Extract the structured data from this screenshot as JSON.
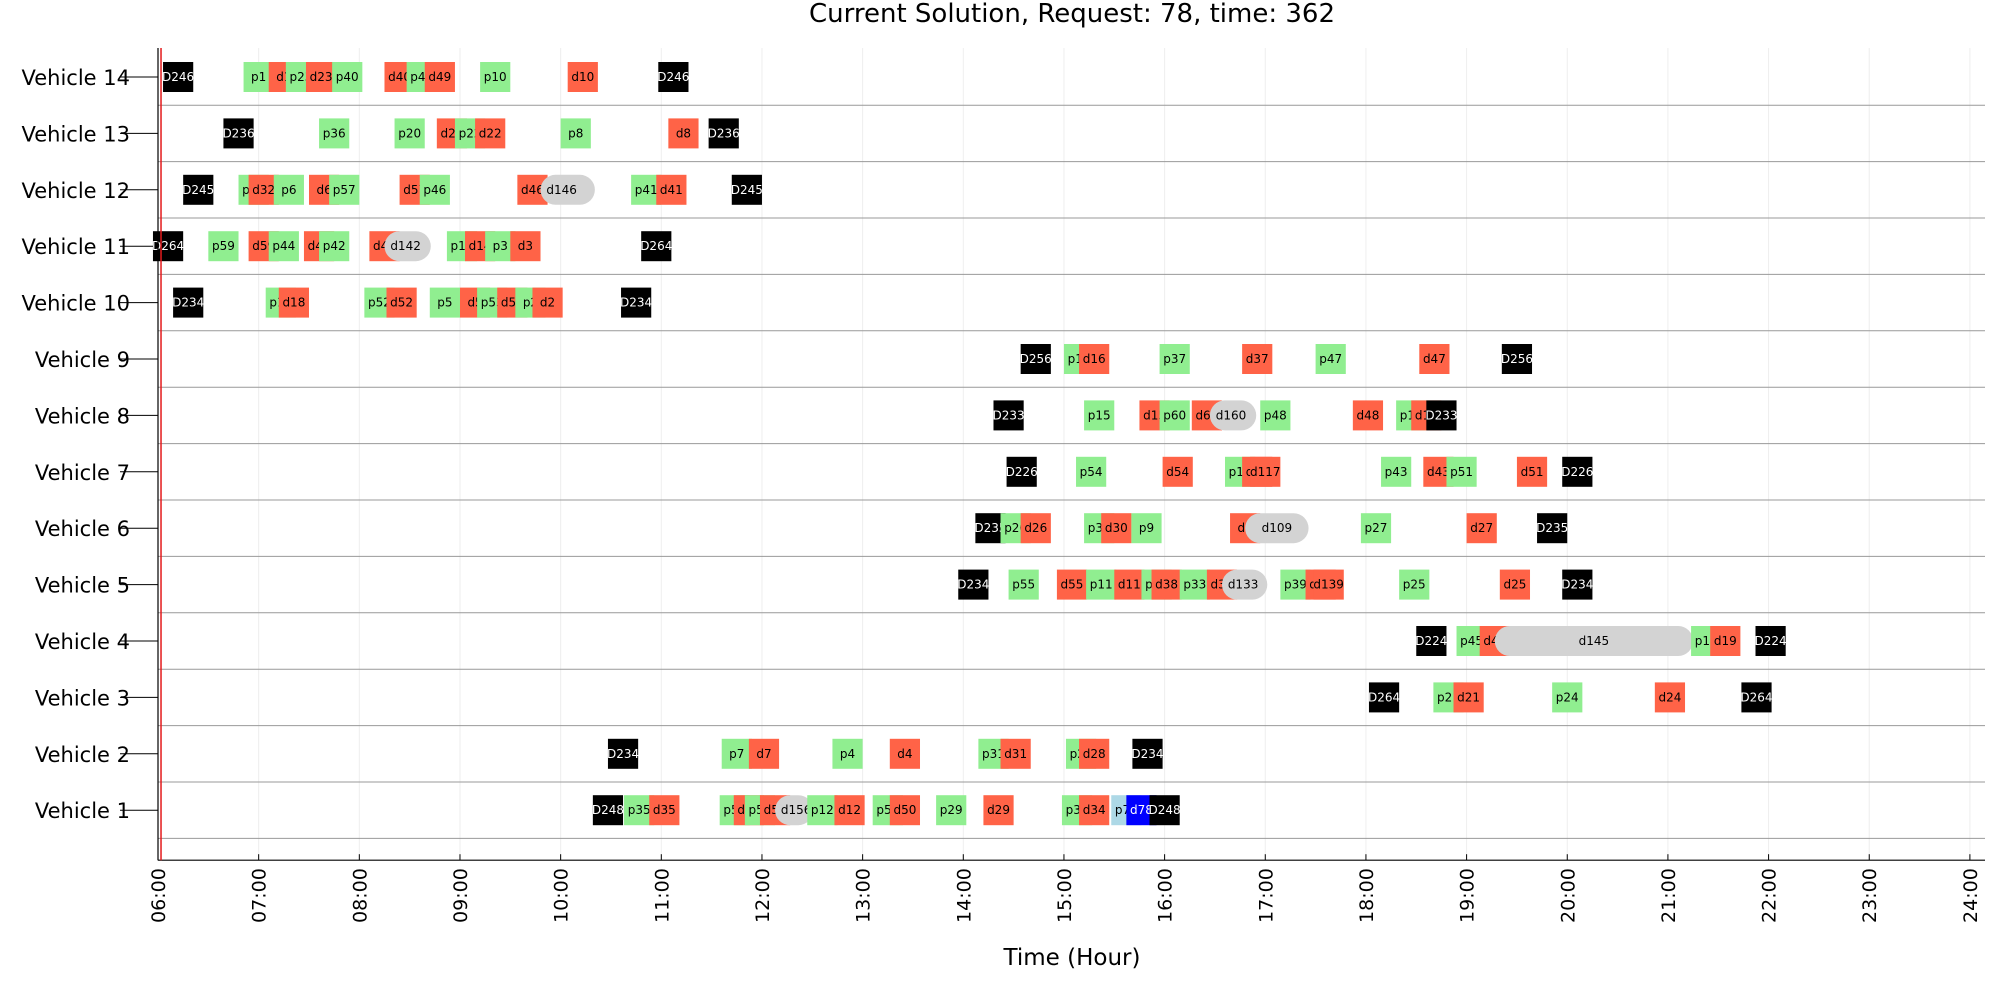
{
  "chart_data": {
    "type": "gantt",
    "title": "Current Solution, Request: 78, time: 362",
    "xlabel": "Time (Hour)",
    "xlim": [
      6,
      24.15
    ],
    "x_ticks": [
      "06:00",
      "07:00",
      "08:00",
      "09:00",
      "10:00",
      "11:00",
      "12:00",
      "13:00",
      "14:00",
      "15:00",
      "16:00",
      "17:00",
      "18:00",
      "19:00",
      "20:00",
      "21:00",
      "22:00",
      "23:00",
      "24:00"
    ],
    "current_time_marker": 6.03,
    "grid": true,
    "legend": "none",
    "colors": {
      "pickup": "#90EE90",
      "dropoff": "#FF6347",
      "depot": "#000000",
      "active_pickup": "#ADD8E6",
      "active_dropoff": "#0000FF",
      "pending_dropoff": "#D3D3D3",
      "time_marker": "#E41A1C",
      "row_separator": "#999999"
    },
    "event_width_hours": 0.3,
    "vehicles": [
      {
        "name": "Vehicle 14",
        "events": [
          {
            "label": "D246",
            "t": 6.2,
            "kind": "depot"
          },
          {
            "label": "p1",
            "t": 7.0,
            "kind": "pickup"
          },
          {
            "label": "d1",
            "t": 7.25,
            "kind": "dropoff"
          },
          {
            "label": "p23",
            "t": 7.42,
            "kind": "pickup"
          },
          {
            "label": "d23",
            "t": 7.62,
            "kind": "dropoff"
          },
          {
            "label": "p40",
            "t": 7.88,
            "kind": "pickup"
          },
          {
            "label": "d40",
            "t": 8.4,
            "kind": "dropoff"
          },
          {
            "label": "p49",
            "t": 8.62,
            "kind": "pickup"
          },
          {
            "label": "d49",
            "t": 8.8,
            "kind": "dropoff"
          },
          {
            "label": "p10",
            "t": 9.35,
            "kind": "pickup"
          },
          {
            "label": "d10",
            "t": 10.22,
            "kind": "dropoff"
          },
          {
            "label": "D246",
            "t": 11.12,
            "kind": "depot"
          }
        ]
      },
      {
        "name": "Vehicle 13",
        "events": [
          {
            "label": "D236",
            "t": 6.8,
            "kind": "depot"
          },
          {
            "label": "p36",
            "t": 7.75,
            "kind": "pickup"
          },
          {
            "label": "p20",
            "t": 8.5,
            "kind": "pickup"
          },
          {
            "label": "d20",
            "t": 8.92,
            "kind": "dropoff"
          },
          {
            "label": "p22",
            "t": 9.1,
            "kind": "pickup"
          },
          {
            "label": "d22",
            "t": 9.3,
            "kind": "dropoff"
          },
          {
            "label": "p8",
            "t": 10.15,
            "kind": "pickup"
          },
          {
            "label": "d8",
            "t": 11.22,
            "kind": "dropoff"
          },
          {
            "label": "D236",
            "t": 11.62,
            "kind": "depot"
          }
        ]
      },
      {
        "name": "Vehicle 12",
        "events": [
          {
            "label": "D245",
            "t": 6.4,
            "kind": "depot"
          },
          {
            "label": "p32",
            "t": 6.95,
            "kind": "pickup"
          },
          {
            "label": "d32",
            "t": 7.05,
            "kind": "dropoff"
          },
          {
            "label": "p6",
            "t": 7.3,
            "kind": "pickup"
          },
          {
            "label": "d6",
            "t": 7.65,
            "kind": "dropoff"
          },
          {
            "label": "p57",
            "t": 7.85,
            "kind": "pickup"
          },
          {
            "label": "d57",
            "t": 8.55,
            "kind": "dropoff"
          },
          {
            "label": "p46",
            "t": 8.75,
            "kind": "pickup"
          },
          {
            "label": "d46",
            "t": 9.72,
            "kind": "dropoff"
          },
          {
            "label": "d146",
            "t": 9.95,
            "kind": "pending",
            "t_end": 10.19
          },
          {
            "label": "p41",
            "t": 10.85,
            "kind": "pickup"
          },
          {
            "label": "d41",
            "t": 11.1,
            "kind": "dropoff"
          },
          {
            "label": "D245",
            "t": 11.85,
            "kind": "depot"
          }
        ]
      },
      {
        "name": "Vehicle 11",
        "events": [
          {
            "label": "D264",
            "t": 6.1,
            "kind": "depot"
          },
          {
            "label": "p59",
            "t": 6.65,
            "kind": "pickup"
          },
          {
            "label": "d59",
            "t": 7.05,
            "kind": "dropoff"
          },
          {
            "label": "p44",
            "t": 7.25,
            "kind": "pickup"
          },
          {
            "label": "d44",
            "t": 7.6,
            "kind": "dropoff"
          },
          {
            "label": "p42",
            "t": 7.75,
            "kind": "pickup"
          },
          {
            "label": "d42",
            "t": 8.25,
            "kind": "dropoff"
          },
          {
            "label": "d142",
            "t": 8.4,
            "kind": "pending",
            "t_end": 8.56
          },
          {
            "label": "p14",
            "t": 9.02,
            "kind": "pickup"
          },
          {
            "label": "d14",
            "t": 9.2,
            "kind": "dropoff"
          },
          {
            "label": "p3",
            "t": 9.4,
            "kind": "pickup"
          },
          {
            "label": "d3",
            "t": 9.65,
            "kind": "dropoff"
          },
          {
            "label": "D264",
            "t": 10.95,
            "kind": "depot"
          }
        ]
      },
      {
        "name": "Vehicle 10",
        "events": [
          {
            "label": "D234",
            "t": 6.3,
            "kind": "depot"
          },
          {
            "label": "p18",
            "t": 7.22,
            "kind": "pickup"
          },
          {
            "label": "d18",
            "t": 7.35,
            "kind": "dropoff"
          },
          {
            "label": "p52",
            "t": 8.2,
            "kind": "pickup"
          },
          {
            "label": "d52",
            "t": 8.42,
            "kind": "dropoff"
          },
          {
            "label": "p5",
            "t": 8.85,
            "kind": "pickup"
          },
          {
            "label": "d5",
            "t": 9.15,
            "kind": "dropoff"
          },
          {
            "label": "p53",
            "t": 9.32,
            "kind": "pickup"
          },
          {
            "label": "d53",
            "t": 9.52,
            "kind": "dropoff"
          },
          {
            "label": "p2",
            "t": 9.7,
            "kind": "pickup"
          },
          {
            "label": "d2",
            "t": 9.87,
            "kind": "dropoff"
          },
          {
            "label": "D234",
            "t": 10.75,
            "kind": "depot"
          }
        ]
      },
      {
        "name": "Vehicle 9",
        "events": [
          {
            "label": "D256",
            "t": 14.72,
            "kind": "depot"
          },
          {
            "label": "p16",
            "t": 15.15,
            "kind": "pickup"
          },
          {
            "label": "d16",
            "t": 15.3,
            "kind": "dropoff"
          },
          {
            "label": "p37",
            "t": 16.1,
            "kind": "pickup"
          },
          {
            "label": "d37",
            "t": 16.92,
            "kind": "dropoff"
          },
          {
            "label": "p47",
            "t": 17.65,
            "kind": "pickup"
          },
          {
            "label": "d47",
            "t": 18.68,
            "kind": "dropoff"
          },
          {
            "label": "D256",
            "t": 19.5,
            "kind": "depot"
          }
        ]
      },
      {
        "name": "Vehicle 8",
        "events": [
          {
            "label": "D233",
            "t": 14.45,
            "kind": "depot"
          },
          {
            "label": "p15",
            "t": 15.35,
            "kind": "pickup"
          },
          {
            "label": "d15",
            "t": 15.9,
            "kind": "dropoff"
          },
          {
            "label": "p60",
            "t": 16.1,
            "kind": "pickup"
          },
          {
            "label": "d60",
            "t": 16.42,
            "kind": "dropoff"
          },
          {
            "label": "d160",
            "t": 16.6,
            "kind": "pending",
            "t_end": 16.76
          },
          {
            "label": "p48",
            "t": 17.1,
            "kind": "pickup"
          },
          {
            "label": "d48",
            "t": 18.02,
            "kind": "dropoff"
          },
          {
            "label": "p13",
            "t": 18.45,
            "kind": "pickup"
          },
          {
            "label": "d13",
            "t": 18.6,
            "kind": "dropoff"
          },
          {
            "label": "D233",
            "t": 18.75,
            "kind": "depot"
          }
        ]
      },
      {
        "name": "Vehicle 7",
        "events": [
          {
            "label": "D226",
            "t": 14.58,
            "kind": "depot"
          },
          {
            "label": "p54",
            "t": 15.27,
            "kind": "pickup"
          },
          {
            "label": "d54",
            "t": 16.13,
            "kind": "dropoff"
          },
          {
            "label": "p17",
            "t": 16.75,
            "kind": "pickup"
          },
          {
            "label": "d17",
            "t": 16.92,
            "kind": "dropoff"
          },
          {
            "label": "d117",
            "t": 17.0,
            "kind": "dropoff"
          },
          {
            "label": "p43",
            "t": 18.3,
            "kind": "pickup"
          },
          {
            "label": "d43",
            "t": 18.72,
            "kind": "dropoff"
          },
          {
            "label": "p51",
            "t": 18.95,
            "kind": "pickup"
          },
          {
            "label": "d51",
            "t": 19.65,
            "kind": "dropoff"
          },
          {
            "label": "D226",
            "t": 20.1,
            "kind": "depot"
          }
        ]
      },
      {
        "name": "Vehicle 6",
        "events": [
          {
            "label": "D235",
            "t": 14.27,
            "kind": "depot"
          },
          {
            "label": "p26",
            "t": 14.52,
            "kind": "pickup"
          },
          {
            "label": "d26",
            "t": 14.72,
            "kind": "dropoff"
          },
          {
            "label": "p30",
            "t": 15.35,
            "kind": "pickup"
          },
          {
            "label": "d30",
            "t": 15.52,
            "kind": "dropoff"
          },
          {
            "label": "p9",
            "t": 15.82,
            "kind": "pickup"
          },
          {
            "label": "d9",
            "t": 16.8,
            "kind": "dropoff"
          },
          {
            "label": "d109",
            "t": 16.95,
            "kind": "pending",
            "t_end": 17.28
          },
          {
            "label": "p27",
            "t": 18.1,
            "kind": "pickup"
          },
          {
            "label": "d27",
            "t": 19.15,
            "kind": "dropoff"
          },
          {
            "label": "D235",
            "t": 19.85,
            "kind": "depot"
          }
        ]
      },
      {
        "name": "Vehicle 5",
        "events": [
          {
            "label": "D234",
            "t": 14.1,
            "kind": "depot"
          },
          {
            "label": "p55",
            "t": 14.6,
            "kind": "pickup"
          },
          {
            "label": "d55",
            "t": 15.08,
            "kind": "dropoff"
          },
          {
            "label": "p11",
            "t": 15.37,
            "kind": "pickup"
          },
          {
            "label": "d11",
            "t": 15.65,
            "kind": "dropoff"
          },
          {
            "label": "p38",
            "t": 15.92,
            "kind": "pickup"
          },
          {
            "label": "d38",
            "t": 16.02,
            "kind": "dropoff"
          },
          {
            "label": "p33",
            "t": 16.3,
            "kind": "pickup"
          },
          {
            "label": "d33",
            "t": 16.57,
            "kind": "dropoff"
          },
          {
            "label": "d133",
            "t": 16.72,
            "kind": "pending",
            "t_end": 16.87
          },
          {
            "label": "p39",
            "t": 17.3,
            "kind": "pickup"
          },
          {
            "label": "d39",
            "t": 17.55,
            "kind": "dropoff"
          },
          {
            "label": "d139",
            "t": 17.63,
            "kind": "dropoff"
          },
          {
            "label": "p25",
            "t": 18.48,
            "kind": "pickup"
          },
          {
            "label": "d25",
            "t": 19.48,
            "kind": "dropoff"
          },
          {
            "label": "D234",
            "t": 20.1,
            "kind": "depot"
          }
        ]
      },
      {
        "name": "Vehicle 4",
        "events": [
          {
            "label": "D224",
            "t": 18.65,
            "kind": "depot"
          },
          {
            "label": "p45",
            "t": 19.05,
            "kind": "pickup"
          },
          {
            "label": "d45",
            "t": 19.28,
            "kind": "dropoff"
          },
          {
            "label": "d145",
            "t": 19.43,
            "kind": "pending",
            "t_end": 21.1
          },
          {
            "label": "p19",
            "t": 21.38,
            "kind": "pickup"
          },
          {
            "label": "d19",
            "t": 21.57,
            "kind": "dropoff"
          },
          {
            "label": "D224",
            "t": 22.02,
            "kind": "depot"
          }
        ]
      },
      {
        "name": "Vehicle 3",
        "events": [
          {
            "label": "D264",
            "t": 18.18,
            "kind": "depot"
          },
          {
            "label": "p21",
            "t": 18.82,
            "kind": "pickup"
          },
          {
            "label": "d21",
            "t": 19.02,
            "kind": "dropoff"
          },
          {
            "label": "p24",
            "t": 20.0,
            "kind": "pickup"
          },
          {
            "label": "d24",
            "t": 21.02,
            "kind": "dropoff"
          },
          {
            "label": "D264",
            "t": 21.88,
            "kind": "depot"
          }
        ]
      },
      {
        "name": "Vehicle 2",
        "events": [
          {
            "label": "D234",
            "t": 10.62,
            "kind": "depot"
          },
          {
            "label": "p7",
            "t": 11.75,
            "kind": "pickup"
          },
          {
            "label": "d7",
            "t": 12.02,
            "kind": "dropoff"
          },
          {
            "label": "p4",
            "t": 12.85,
            "kind": "pickup"
          },
          {
            "label": "d4",
            "t": 13.42,
            "kind": "dropoff"
          },
          {
            "label": "p31",
            "t": 14.3,
            "kind": "pickup"
          },
          {
            "label": "d31",
            "t": 14.52,
            "kind": "dropoff"
          },
          {
            "label": "p28",
            "t": 15.17,
            "kind": "pickup"
          },
          {
            "label": "d28",
            "t": 15.3,
            "kind": "dropoff"
          },
          {
            "label": "D234",
            "t": 15.83,
            "kind": "depot"
          }
        ]
      },
      {
        "name": "Vehicle 1",
        "events": [
          {
            "label": "D248",
            "t": 10.47,
            "kind": "depot"
          },
          {
            "label": "p35",
            "t": 10.78,
            "kind": "pickup"
          },
          {
            "label": "d35",
            "t": 11.03,
            "kind": "dropoff"
          },
          {
            "label": "p58",
            "t": 11.73,
            "kind": "pickup"
          },
          {
            "label": "d58",
            "t": 11.87,
            "kind": "dropoff"
          },
          {
            "label": "p56",
            "t": 11.98,
            "kind": "pickup"
          },
          {
            "label": "d56",
            "t": 12.13,
            "kind": "dropoff"
          },
          {
            "label": "d156",
            "t": 12.28,
            "kind": "pending",
            "t_end": 12.36
          },
          {
            "label": "p12",
            "t": 12.6,
            "kind": "pickup"
          },
          {
            "label": "d12",
            "t": 12.87,
            "kind": "dropoff"
          },
          {
            "label": "p50",
            "t": 13.25,
            "kind": "pickup"
          },
          {
            "label": "d50",
            "t": 13.42,
            "kind": "dropoff"
          },
          {
            "label": "p29",
            "t": 13.88,
            "kind": "pickup"
          },
          {
            "label": "d29",
            "t": 14.35,
            "kind": "dropoff"
          },
          {
            "label": "p34",
            "t": 15.13,
            "kind": "pickup"
          },
          {
            "label": "d34",
            "t": 15.3,
            "kind": "dropoff"
          },
          {
            "label": "p78",
            "t": 15.62,
            "kind": "active_pickup"
          },
          {
            "label": "d78",
            "t": 15.77,
            "kind": "active_dropoff"
          },
          {
            "label": "D248",
            "t": 16.0,
            "kind": "depot"
          }
        ]
      }
    ]
  }
}
